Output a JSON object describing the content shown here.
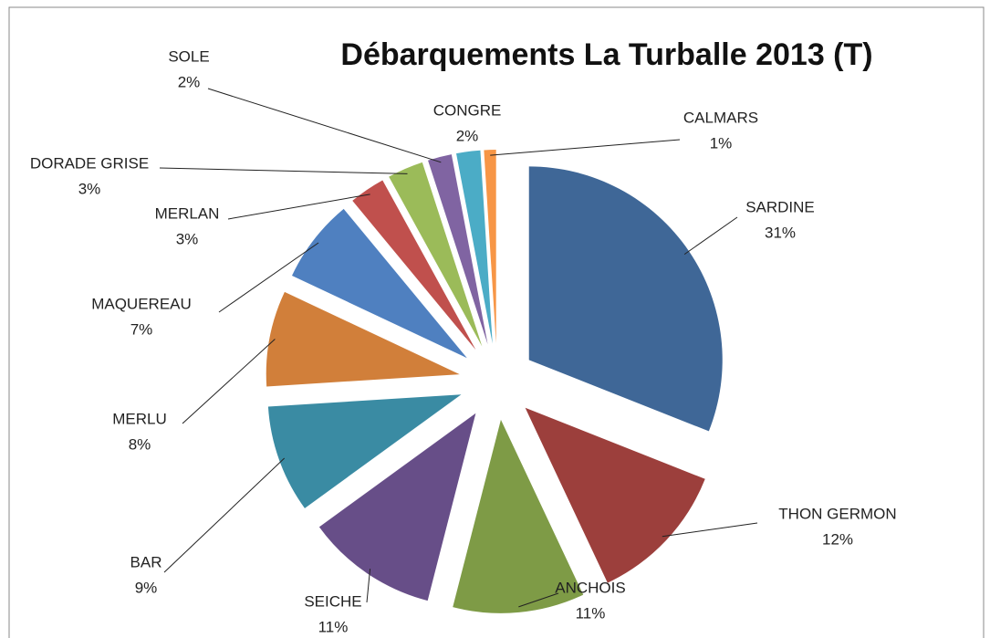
{
  "chart_data": {
    "type": "pie",
    "title": "Débarquements La Turballe 2013 (T)",
    "categories": [
      "SARDINE",
      "THON GERMON",
      "ANCHOIS",
      "SEICHE",
      "BAR",
      "MERLU",
      "MAQUEREAU",
      "MERLAN",
      "DORADE GRISE",
      "SOLE",
      "CONGRE",
      "CALMARS"
    ],
    "values": [
      31,
      12,
      11,
      11,
      9,
      8,
      7,
      3,
      3,
      2,
      2,
      1
    ],
    "value_labels": [
      "31%",
      "12%",
      "11%",
      "11%",
      "9%",
      "8%",
      "7%",
      "3%",
      "3%",
      "2%",
      "2%",
      "1%"
    ],
    "colors": [
      "#3f6797",
      "#9c3f3c",
      "#7e9b46",
      "#674e88",
      "#3a8ba3",
      "#d17f3a",
      "#4f80c0",
      "#c0504d",
      "#9bbb59",
      "#8064a2",
      "#4bacc6",
      "#f79646"
    ]
  }
}
